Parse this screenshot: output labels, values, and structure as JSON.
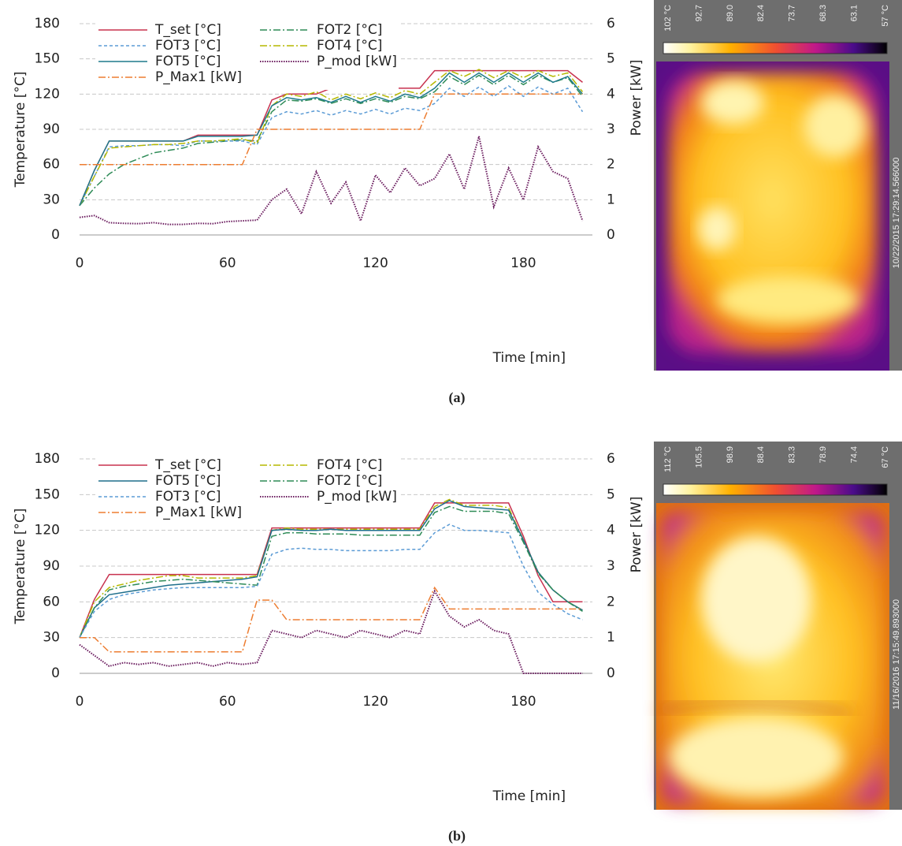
{
  "chart_data": [
    {
      "type": "line",
      "caption": "(a)",
      "x_label": "Time [min]",
      "y_label": "Temperature [°C]",
      "y2_label": "Power [kW]",
      "x": [
        0,
        6,
        12,
        18,
        24,
        30,
        36,
        42,
        48,
        54,
        60,
        66,
        72,
        78,
        84,
        90,
        96,
        102,
        108,
        114,
        120,
        126,
        132,
        138,
        144,
        150,
        156,
        162,
        168,
        174,
        180,
        186,
        192,
        198,
        204
      ],
      "xlim": [
        0,
        208
      ],
      "xticks": [
        0,
        60,
        120,
        180
      ],
      "ylim": [
        0,
        180
      ],
      "yticks": [
        0,
        30,
        60,
        90,
        120,
        150,
        180
      ],
      "y2lim": [
        0,
        6
      ],
      "y2ticks": [
        0,
        1,
        2,
        3,
        4,
        5,
        6
      ],
      "grid": true,
      "legend": "upper left",
      "series": [
        {
          "name": "T_set   [°C]",
          "color": "#c8324f",
          "dash": "solid",
          "values": [
            25,
            55,
            80,
            80,
            80,
            80,
            80,
            80,
            85,
            85,
            85,
            85,
            85,
            115,
            120,
            120,
            120,
            125,
            125,
            125,
            125,
            125,
            125,
            125,
            140,
            140,
            140,
            140,
            140,
            140,
            140,
            140,
            140,
            140,
            130
          ]
        },
        {
          "name": "FOT2   [°C]",
          "color": "#2e8b57",
          "dash": "dashdot",
          "values": [
            25,
            40,
            52,
            60,
            65,
            70,
            72,
            74,
            78,
            79,
            80,
            81,
            80,
            105,
            115,
            114,
            116,
            112,
            116,
            112,
            116,
            113,
            118,
            116,
            122,
            135,
            128,
            136,
            128,
            136,
            128,
            136,
            130,
            134,
            118
          ]
        },
        {
          "name": "FOT3   [°C]",
          "color": "#5b9bd5",
          "dash": "dash",
          "values": [
            25,
            50,
            75,
            76,
            76,
            77,
            77,
            76,
            80,
            80,
            80,
            80,
            77,
            100,
            105,
            103,
            106,
            102,
            106,
            103,
            107,
            103,
            108,
            106,
            112,
            125,
            118,
            126,
            118,
            127,
            118,
            126,
            120,
            125,
            105
          ]
        },
        {
          "name": "FOT4   [°C]",
          "color": "#b5b800",
          "dash": "dashdot",
          "values": [
            25,
            50,
            74,
            75,
            76,
            77,
            77,
            78,
            80,
            80,
            81,
            82,
            78,
            110,
            120,
            118,
            122,
            115,
            120,
            116,
            121,
            117,
            123,
            120,
            130,
            140,
            135,
            141,
            134,
            140,
            134,
            140,
            135,
            138,
            122
          ]
        },
        {
          "name": "FOT5 [°C]",
          "color": "#1f7a8c",
          "dash": "solid",
          "values": [
            25,
            55,
            80,
            80,
            80,
            80,
            80,
            80,
            84,
            84,
            84,
            84,
            85,
            110,
            117,
            115,
            117,
            113,
            118,
            113,
            118,
            114,
            120,
            117,
            125,
            138,
            130,
            138,
            130,
            138,
            130,
            138,
            130,
            135,
            120
          ]
        },
        {
          "name": "P_mod [kW]",
          "color": "#6a1b5e",
          "dash": "dot",
          "axis": "y2",
          "values": [
            0.5,
            0.55,
            0.35,
            0.33,
            0.32,
            0.35,
            0.3,
            0.3,
            0.33,
            0.32,
            0.38,
            0.4,
            0.42,
            1.0,
            1.3,
            0.6,
            1.8,
            0.9,
            1.5,
            0.4,
            1.7,
            1.2,
            1.9,
            1.4,
            1.6,
            2.3,
            1.3,
            2.8,
            0.8,
            1.9,
            1.0,
            2.5,
            1.8,
            1.6,
            0.4
          ]
        },
        {
          "name": "P_Max1 [kW]",
          "color": "#ed7d31",
          "dash": "dashdot",
          "axis": "y2",
          "values": [
            2,
            2,
            2,
            2,
            2,
            2,
            2,
            2,
            2,
            2,
            2,
            2,
            3,
            3,
            3,
            3,
            3,
            3,
            3,
            3,
            3,
            3,
            3,
            3,
            4,
            4,
            4,
            4,
            4,
            4,
            4,
            4,
            4,
            4,
            4
          ]
        }
      ]
    },
    {
      "type": "line",
      "caption": "(b)",
      "x_label": "Time [min]",
      "y_label": "Temperature [°C]",
      "y2_label": "Power [kW]",
      "x": [
        0,
        6,
        12,
        18,
        24,
        30,
        36,
        42,
        48,
        54,
        60,
        66,
        72,
        78,
        84,
        90,
        96,
        102,
        108,
        114,
        120,
        126,
        132,
        138,
        144,
        150,
        156,
        162,
        168,
        174,
        180,
        186,
        192,
        198,
        204
      ],
      "xlim": [
        0,
        208
      ],
      "xticks": [
        0,
        60,
        120,
        180
      ],
      "ylim": [
        0,
        180
      ],
      "yticks": [
        0,
        30,
        60,
        90,
        120,
        150,
        180
      ],
      "y2lim": [
        0,
        6
      ],
      "y2ticks": [
        0,
        1,
        2,
        3,
        4,
        5,
        6
      ],
      "grid": true,
      "legend": "upper left",
      "series": [
        {
          "name": "T_set   [°C]",
          "color": "#c8324f",
          "dash": "solid",
          "values": [
            30,
            62,
            83,
            83,
            83,
            83,
            83,
            83,
            83,
            83,
            83,
            83,
            83,
            122,
            122,
            122,
            122,
            122,
            122,
            122,
            122,
            122,
            122,
            122,
            143,
            143,
            143,
            143,
            143,
            143,
            115,
            82,
            60,
            60,
            60
          ]
        },
        {
          "name": "FOT4   [°C]",
          "color": "#b5b800",
          "dash": "dashdot",
          "values": [
            30,
            60,
            72,
            75,
            78,
            80,
            82,
            82,
            80,
            80,
            80,
            80,
            82,
            120,
            122,
            121,
            121,
            121,
            121,
            121,
            121,
            121,
            121,
            121,
            140,
            146,
            141,
            141,
            141,
            139,
            112,
            85,
            70,
            60,
            53
          ]
        },
        {
          "name": "FOT5   [°C]",
          "color": "#1f6f8c",
          "dash": "solid",
          "values": [
            30,
            55,
            66,
            68,
            70,
            72,
            74,
            75,
            76,
            77,
            78,
            79,
            81,
            120,
            121,
            120,
            120,
            121,
            120,
            120,
            120,
            120,
            120,
            120,
            138,
            145,
            140,
            139,
            138,
            137,
            112,
            85,
            70,
            60,
            53
          ]
        },
        {
          "name": "FOT2   [°C]",
          "color": "#2e8b57",
          "dash": "dashdot",
          "values": [
            30,
            55,
            70,
            73,
            75,
            77,
            78,
            79,
            78,
            77,
            76,
            75,
            74,
            115,
            118,
            118,
            117,
            117,
            117,
            116,
            116,
            116,
            116,
            116,
            135,
            140,
            136,
            136,
            136,
            134,
            110,
            84,
            70,
            60,
            52
          ]
        },
        {
          "name": "FOT3 [°C]",
          "color": "#5b9bd5",
          "dash": "dash",
          "values": [
            30,
            52,
            62,
            66,
            68,
            70,
            71,
            72,
            72,
            72,
            72,
            72,
            73,
            100,
            104,
            105,
            104,
            104,
            103,
            103,
            103,
            103,
            104,
            104,
            118,
            125,
            120,
            120,
            119,
            118,
            90,
            68,
            58,
            50,
            45
          ]
        },
        {
          "name": "P_mod [kW]",
          "color": "#6a1b5e",
          "dash": "dot",
          "axis": "y2",
          "values": [
            0.8,
            0.5,
            0.2,
            0.3,
            0.25,
            0.3,
            0.2,
            0.25,
            0.3,
            0.2,
            0.3,
            0.25,
            0.3,
            1.2,
            1.1,
            1.0,
            1.2,
            1.1,
            1.0,
            1.2,
            1.1,
            1.0,
            1.2,
            1.1,
            2.3,
            1.6,
            1.3,
            1.5,
            1.2,
            1.1,
            0,
            0,
            0,
            0,
            0
          ]
        },
        {
          "name": "P_Max1 [kW]",
          "color": "#ed7d31",
          "dash": "dashdot",
          "axis": "y2",
          "values": [
            1,
            1,
            0.6,
            0.6,
            0.6,
            0.6,
            0.6,
            0.6,
            0.6,
            0.6,
            0.6,
            0.6,
            2.05,
            2.05,
            1.5,
            1.5,
            1.5,
            1.5,
            1.5,
            1.5,
            1.5,
            1.5,
            1.5,
            1.5,
            2.4,
            1.8,
            1.8,
            1.8,
            1.8,
            1.8,
            1.8,
            1.8,
            1.8,
            1.8,
            1.8
          ]
        }
      ]
    }
  ],
  "thermal_images": [
    {
      "scale_labels": [
        "102 °C",
        "92.7",
        "89.0",
        "82.4",
        "73.7",
        "68.3",
        "63.1",
        "57 °C"
      ],
      "timestamp": "10/22/2015 17:29:14.566000"
    },
    {
      "scale_labels": [
        "112 °C",
        "105.5",
        "98.9",
        "88.4",
        "83.3",
        "78.9",
        "74.4",
        "67 °C"
      ],
      "timestamp": "11/16/2016 17:15:49.893000"
    }
  ]
}
